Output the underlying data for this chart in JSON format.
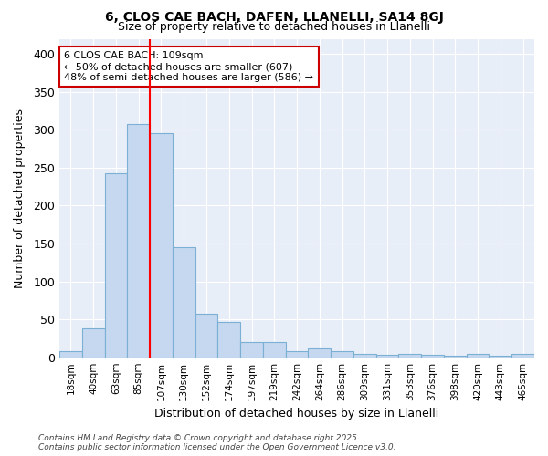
{
  "title1": "6, CLOS CAE BACH, DAFEN, LLANELLI, SA14 8GJ",
  "title2": "Size of property relative to detached houses in Llanelli",
  "xlabel": "Distribution of detached houses by size in Llanelli",
  "ylabel": "Number of detached properties",
  "bin_labels": [
    "18sqm",
    "40sqm",
    "63sqm",
    "85sqm",
    "107sqm",
    "130sqm",
    "152sqm",
    "174sqm",
    "197sqm",
    "219sqm",
    "242sqm",
    "264sqm",
    "286sqm",
    "309sqm",
    "331sqm",
    "353sqm",
    "376sqm",
    "398sqm",
    "420sqm",
    "443sqm",
    "465sqm"
  ],
  "bar_heights": [
    8,
    38,
    243,
    308,
    295,
    145,
    57,
    47,
    20,
    20,
    8,
    12,
    8,
    4,
    3,
    4,
    3,
    2,
    4,
    2,
    4
  ],
  "bar_color": "#c5d8f0",
  "bar_edge_color": "#7bafd4",
  "red_line_x": 3.5,
  "annotation_text": "6 CLOS CAE BACH: 109sqm\n← 50% of detached houses are smaller (607)\n48% of semi-detached houses are larger (586) →",
  "annotation_box_color": "#ffffff",
  "annotation_box_edge": "#cc0000",
  "ylim": [
    0,
    420
  ],
  "yticks": [
    0,
    50,
    100,
    150,
    200,
    250,
    300,
    350,
    400
  ],
  "plot_bg_color": "#e8eef8",
  "fig_bg_color": "#ffffff",
  "grid_color": "#ffffff",
  "footer": "Contains HM Land Registry data © Crown copyright and database right 2025.\nContains public sector information licensed under the Open Government Licence v3.0."
}
